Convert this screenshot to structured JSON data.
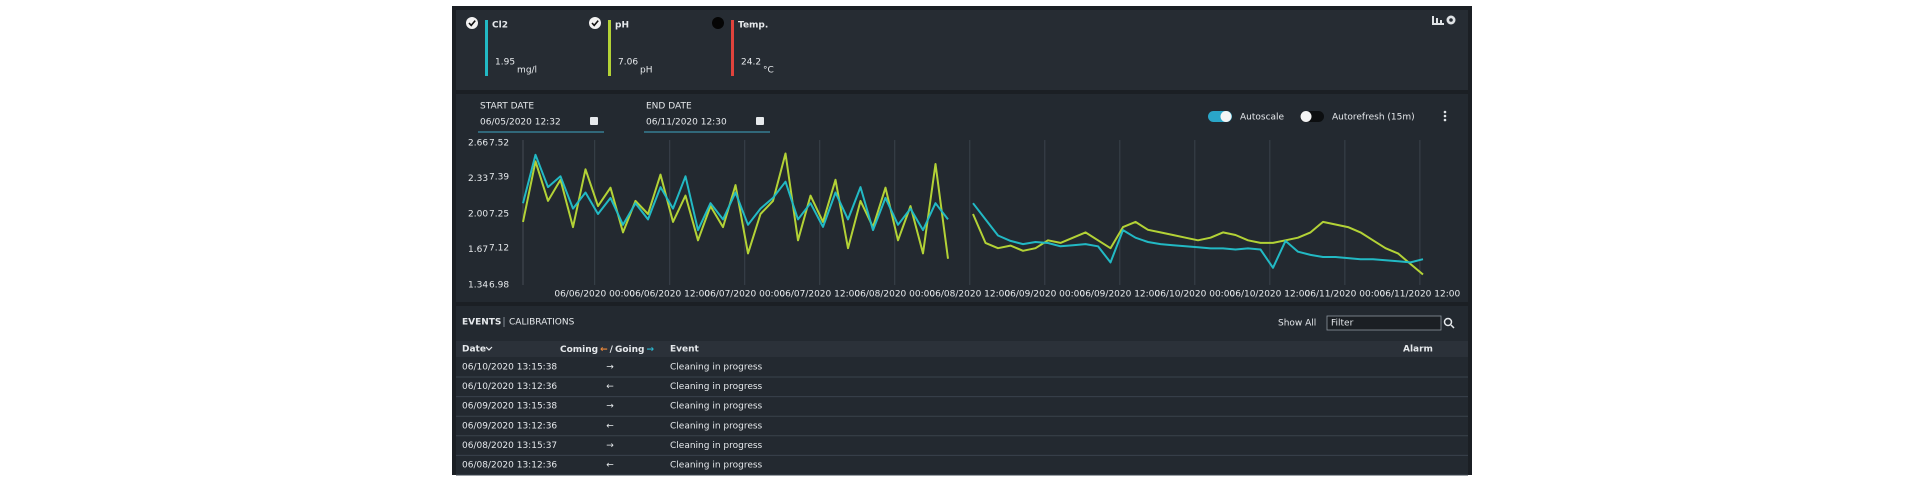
{
  "sensors": [
    {
      "name": "Cl2",
      "value": "1.95",
      "unit": "mg/l",
      "color": "#22b9c4",
      "checked": true
    },
    {
      "name": "pH",
      "value": "7.06",
      "unit": "pH",
      "color": "#b3d236",
      "checked": true
    },
    {
      "name": "Temp.",
      "value": "24.2",
      "unit": "°C",
      "color": "#e0433c",
      "checked": false
    }
  ],
  "start_date": {
    "label": "START DATE",
    "value": "06/05/2020 12:32"
  },
  "end_date": {
    "label": "END DATE",
    "value": "06/11/2020 12:30"
  },
  "toggles": [
    {
      "label": "Autoscale",
      "on": true
    },
    {
      "label": "Autorefresh (15m)",
      "on": false
    }
  ],
  "chart_data": {
    "type": "line",
    "ylim": [
      1.34,
      2.66
    ],
    "yticks": [
      1.34,
      1.67,
      {
        "value": 2,
        "label": "2.00"
      },
      2.33,
      2.66
    ],
    "y2lim": [
      6.98,
      7.52
    ],
    "y2ticks": [
      6.98,
      7.12,
      7.25,
      7.39,
      7.52
    ],
    "xticks": [
      "06/06/2020 00:00",
      "06/06/2020 12:00",
      "06/07/2020 00:00",
      "06/07/2020 12:00",
      "06/08/2020 00:00",
      "06/08/2020 12:00",
      "06/09/2020 00:00",
      "06/09/2020 12:00",
      "06/10/2020 00:00",
      "06/10/2020 12:00",
      "06/11/2020 00:00",
      "06/11/2020 12:00"
    ],
    "grid": true,
    "series": [
      {
        "color": "#22b9c4",
        "values": [
          2.1,
          2.55,
          2.25,
          2.35,
          2.05,
          2.2,
          2.0,
          2.15,
          1.9,
          2.1,
          1.95,
          2.25,
          2.05,
          2.35,
          1.85,
          2.1,
          1.95,
          2.2,
          1.9,
          2.05,
          2.15,
          2.3,
          1.95,
          2.1,
          1.88,
          2.2,
          1.95,
          2.25,
          1.85,
          2.15,
          1.9,
          2.05,
          1.85,
          2.1,
          1.95,
          null,
          2.1,
          1.95,
          1.8,
          1.75,
          1.72,
          1.74,
          1.73,
          1.7,
          1.71,
          1.72,
          1.7,
          1.55,
          1.85,
          1.78,
          1.74,
          1.72,
          1.71,
          1.7,
          1.69,
          1.68,
          1.68,
          1.67,
          1.68,
          1.67,
          1.5,
          1.75,
          1.65,
          1.62,
          1.6,
          1.6,
          1.59,
          1.58,
          1.58,
          1.57,
          1.56,
          1.55,
          1.58
        ]
      },
      {
        "color": "#b3d236",
        "axis": "y2",
        "values": [
          7.22,
          7.45,
          7.3,
          7.38,
          7.2,
          7.42,
          7.28,
          7.35,
          7.18,
          7.3,
          7.25,
          7.4,
          7.22,
          7.32,
          7.15,
          7.28,
          7.2,
          7.36,
          7.1,
          7.25,
          7.3,
          7.48,
          7.15,
          7.32,
          7.22,
          7.38,
          7.12,
          7.3,
          7.2,
          7.35,
          7.15,
          7.28,
          7.1,
          7.44,
          7.08,
          null,
          7.25,
          7.14,
          7.12,
          7.13,
          7.11,
          7.12,
          7.15,
          7.14,
          7.16,
          7.18,
          7.15,
          7.12,
          7.2,
          7.22,
          7.19,
          7.18,
          7.17,
          7.16,
          7.15,
          7.16,
          7.18,
          7.17,
          7.15,
          7.14,
          7.14,
          7.15,
          7.16,
          7.18,
          7.22,
          7.21,
          7.2,
          7.18,
          7.15,
          7.12,
          7.1,
          7.06,
          7.02
        ]
      }
    ]
  },
  "events": {
    "tabs": [
      "EVENTS",
      "CALIBRATIONS"
    ],
    "show_all": "Show All",
    "filter_placeholder": "Filter",
    "columns": {
      "date": "Date",
      "coming": "Coming",
      "coming_arrow": "←",
      "slash": "/",
      "going": "Going",
      "going_arrow": "→",
      "event": "Event",
      "alarm": "Alarm"
    },
    "rows": [
      [
        "06/10/2020 13:15:38",
        "→",
        "Cleaning in progress"
      ],
      [
        "06/10/2020 13:12:36",
        "←",
        "Cleaning in progress"
      ],
      [
        "06/09/2020 13:15:38",
        "→",
        "Cleaning in progress"
      ],
      [
        "06/09/2020 13:12:36",
        "←",
        "Cleaning in progress"
      ],
      [
        "06/08/2020 13:15:37",
        "→",
        "Cleaning in progress"
      ],
      [
        "06/08/2020 13:12:36",
        "←",
        "Cleaning in progress"
      ]
    ]
  }
}
